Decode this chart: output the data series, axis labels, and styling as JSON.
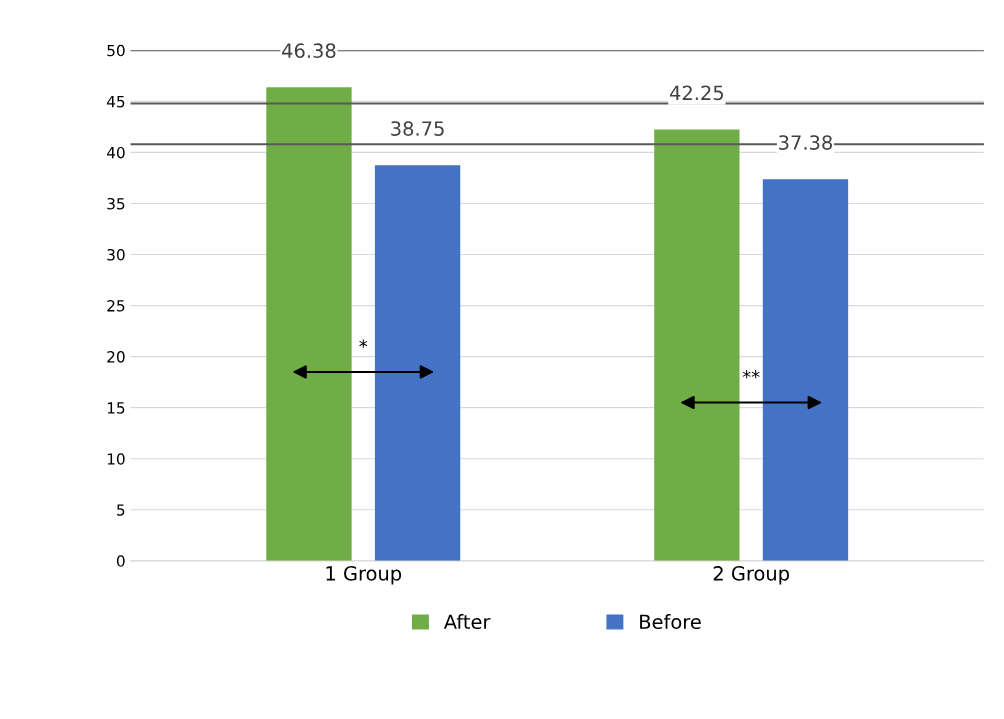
{
  "chart_data": {
    "type": "bar",
    "categories": [
      "1 Group",
      "2 Group"
    ],
    "series": [
      {
        "name": "After",
        "color": "#70ad47",
        "values": [
          46.38,
          42.25
        ]
      },
      {
        "name": "Before",
        "color": "#4472c4",
        "values": [
          38.75,
          37.38
        ]
      }
    ],
    "ylim": [
      0,
      50
    ],
    "yticks": [
      0,
      5,
      10,
      15,
      20,
      25,
      30,
      35,
      40,
      45,
      50
    ],
    "grid": "y",
    "legend": "bottom",
    "data_labels": true,
    "ref_lines": [
      {
        "axis": "y",
        "value": 50,
        "color": "#595959"
      },
      {
        "axis": "y",
        "value": 44.8,
        "color": "#595959"
      },
      {
        "axis": "y",
        "value": 40.8,
        "color": "#595959"
      }
    ],
    "annotations": [
      "*",
      "**"
    ]
  }
}
